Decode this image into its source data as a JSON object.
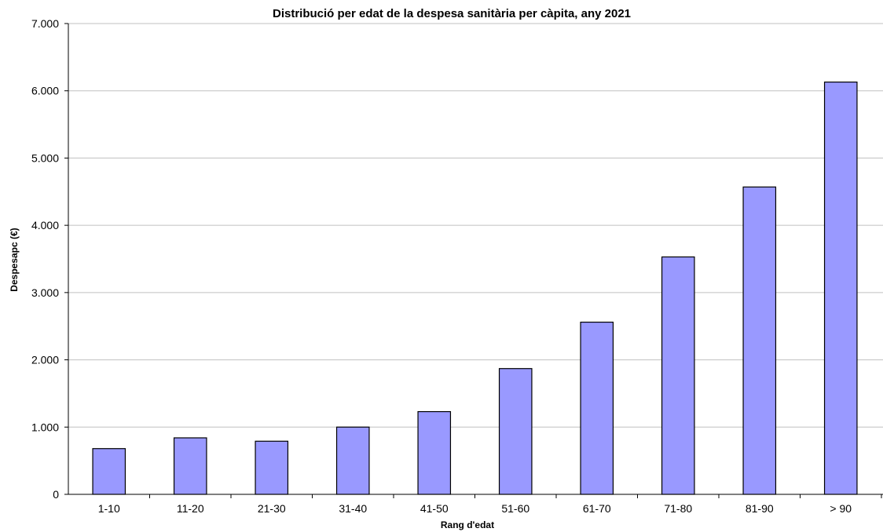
{
  "chart_data": {
    "type": "bar",
    "title": "Distribució per edat de la despesa sanitària per càpita, any 2021",
    "xlabel": "Rang d'edat",
    "ylabel": "Despesapc (€)",
    "categories": [
      "1-10",
      "11-20",
      "21-30",
      "31-40",
      "41-50",
      "51-60",
      "61-70",
      "71-80",
      "81-90",
      "> 90"
    ],
    "values": [
      680,
      840,
      790,
      1000,
      1230,
      1870,
      2560,
      3530,
      4570,
      6130
    ],
    "ylim": [
      0,
      7000
    ],
    "yticks": [
      0,
      1000,
      2000,
      3000,
      4000,
      5000,
      6000,
      7000
    ],
    "ytick_labels": [
      "0",
      "1.000",
      "2.000",
      "3.000",
      "4.000",
      "5.000",
      "6.000",
      "7.000"
    ],
    "grid": true,
    "bar_color": "#9999ff"
  }
}
